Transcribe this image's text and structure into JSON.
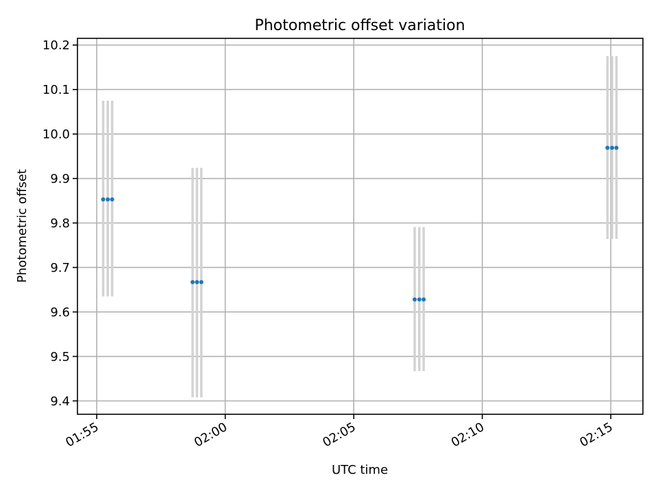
{
  "chart_data": {
    "type": "scatter",
    "title": "Photometric offset variation",
    "xlabel": "UTC time",
    "ylabel": "Photometric offset",
    "x_tick_labels": [
      "01:55",
      "02:00",
      "02:05",
      "02:10",
      "02:15"
    ],
    "y_tick_labels": [
      "9.4",
      "9.5",
      "9.6",
      "9.7",
      "9.8",
      "9.9",
      "10.0",
      "10.1",
      "10.2"
    ],
    "x_ticks_min": [
      115,
      120,
      125,
      130,
      135
    ],
    "y_ticks": [
      9.4,
      9.5,
      9.6,
      9.7,
      9.8,
      9.9,
      10.0,
      10.1,
      10.2
    ],
    "xlim_min": [
      114.25,
      136.25
    ],
    "ylim": [
      9.37,
      10.215
    ],
    "grid": true,
    "colors": {
      "point": "#1f77b4",
      "errorbar": "#d3d3d3",
      "grid": "#b0b0b0"
    },
    "groups": [
      {
        "x_min": [
          115.25,
          115.43,
          115.6
        ],
        "y": 9.853,
        "yerr_low": 9.635,
        "yerr_high": 10.075
      },
      {
        "x_min": [
          118.73,
          118.9,
          119.07
        ],
        "y": 9.667,
        "yerr_low": 9.408,
        "yerr_high": 9.924
      },
      {
        "x_min": [
          127.37,
          127.55,
          127.72
        ],
        "y": 9.628,
        "yerr_low": 9.467,
        "yerr_high": 9.791
      },
      {
        "x_min": [
          134.87,
          135.05,
          135.22
        ],
        "y": 9.969,
        "yerr_low": 9.764,
        "yerr_high": 10.175
      }
    ]
  }
}
